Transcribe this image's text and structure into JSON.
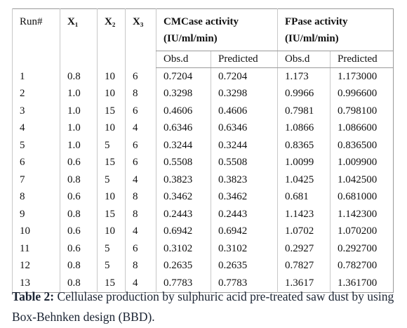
{
  "table": {
    "header": {
      "run": "Run#",
      "x1": "X₁",
      "x2": "X₂",
      "x3": "X₃",
      "cmcase": "CMCase activity (IU/ml/min)",
      "fpase": "FPase activity (IU/ml/min)",
      "sub": [
        "Obs.d",
        "Predicted",
        "Obs.d",
        "Predicted"
      ]
    },
    "rows": [
      [
        "1",
        "0.8",
        "10",
        "6",
        "0.7204",
        "0.7204",
        "1.173",
        "1.173000"
      ],
      [
        "2",
        "1.0",
        "10",
        "8",
        "0.3298",
        "0.3298",
        "0.9966",
        "0.996600"
      ],
      [
        "3",
        "1.0",
        "15",
        "6",
        "0.4606",
        "0.4606",
        "0.7981",
        "0.798100"
      ],
      [
        "4",
        "1.0",
        "10",
        "4",
        "0.6346",
        "0.6346",
        "1.0866",
        "1.086600"
      ],
      [
        "5",
        "1.0",
        "5",
        "6",
        "0.3244",
        "0.3244",
        "0.8365",
        "0.836500"
      ],
      [
        "6",
        "0.6",
        "15",
        "6",
        "0.5508",
        "0.5508",
        "1.0099",
        "1.009900"
      ],
      [
        "7",
        "0.8",
        "5",
        "4",
        "0.3823",
        "0.3823",
        "1.0425",
        "1.042500"
      ],
      [
        "8",
        "0.6",
        "10",
        "8",
        "0.3462",
        "0.3462",
        "0.681",
        "0.681000"
      ],
      [
        "9",
        "0.8",
        "15",
        "8",
        "0.2443",
        "0.2443",
        "1.1423",
        "1.142300"
      ],
      [
        "10",
        "0.6",
        "10",
        "4",
        "0.6942",
        "0.6942",
        "1.0702",
        "1.070200"
      ],
      [
        "11",
        "0.6",
        "5",
        "6",
        "0.3102",
        "0.3102",
        "0.2927",
        "0.292700"
      ],
      [
        "12",
        "0.8",
        "5",
        "8",
        "0.2635",
        "0.2635",
        "0.7827",
        "0.782700"
      ],
      [
        "13",
        "0.8",
        "15",
        "4",
        "0.7783",
        "0.7783",
        "1.3617",
        "1.361700"
      ]
    ]
  },
  "caption": {
    "label": "Table 2:",
    "text": "Cellulase production by sulphuric acid pre-treated saw dust by using Box-Behnken design (BBD)."
  }
}
